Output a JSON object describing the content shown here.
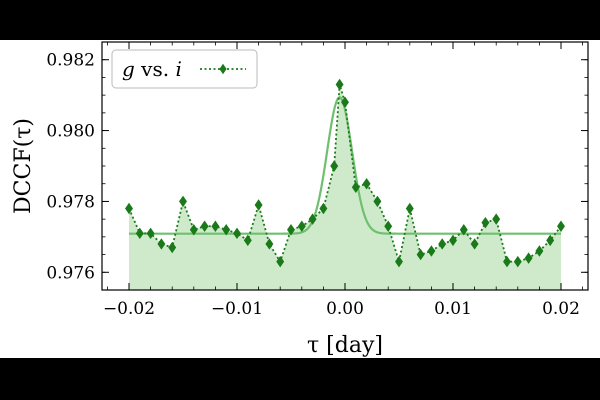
{
  "chart_data": {
    "type": "line",
    "xlabel": "τ [day]",
    "ylabel": "DCCF(τ)",
    "xlim": [
      -0.0225,
      0.0225
    ],
    "ylim": [
      0.9755,
      0.9825
    ],
    "x_ticks": [
      -0.02,
      -0.01,
      0.0,
      0.01,
      0.02
    ],
    "x_tick_labels": [
      "−0.02",
      "−0.01",
      "0.00",
      "0.01",
      "0.02"
    ],
    "y_ticks": [
      0.976,
      0.978,
      0.98,
      0.982
    ],
    "y_tick_labels": [
      "0.976",
      "0.978",
      "0.980",
      "0.982"
    ],
    "grid": false,
    "legend_position": "top-left",
    "series": [
      {
        "name": "g vs. i",
        "legend_name": "g",
        "legend_vs": "vs.",
        "legend_second": "i",
        "style": "dotted-diamond",
        "color": "#1a7a1a",
        "x": [
          -0.02,
          -0.019,
          -0.018,
          -0.017,
          -0.016,
          -0.015,
          -0.014,
          -0.013,
          -0.012,
          -0.011,
          -0.01,
          -0.009,
          -0.008,
          -0.007,
          -0.006,
          -0.005,
          -0.004,
          -0.003,
          -0.002,
          -0.001,
          -0.0005,
          0.0,
          0.001,
          0.002,
          0.003,
          0.004,
          0.005,
          0.006,
          0.007,
          0.008,
          0.009,
          0.01,
          0.011,
          0.012,
          0.013,
          0.014,
          0.015,
          0.016,
          0.017,
          0.018,
          0.019,
          0.02
        ],
        "y": [
          0.9778,
          0.9771,
          0.9771,
          0.9768,
          0.9767,
          0.978,
          0.9772,
          0.9773,
          0.9773,
          0.9772,
          0.9771,
          0.9769,
          0.9779,
          0.9768,
          0.9763,
          0.9772,
          0.9773,
          0.9775,
          0.9778,
          0.979,
          0.9813,
          0.9808,
          0.9784,
          0.9785,
          0.978,
          0.9773,
          0.9763,
          0.9778,
          0.9765,
          0.9766,
          0.9768,
          0.9769,
          0.9772,
          0.9768,
          0.9774,
          0.9775,
          0.9763,
          0.9763,
          0.9764,
          0.9766,
          0.9769,
          0.9773
        ]
      }
    ],
    "fit": {
      "type": "gaussian",
      "color": "#6fbf6f",
      "baseline": 0.97709,
      "amplitude": 0.00385,
      "center": -0.0005,
      "sigma": 0.00115
    }
  }
}
